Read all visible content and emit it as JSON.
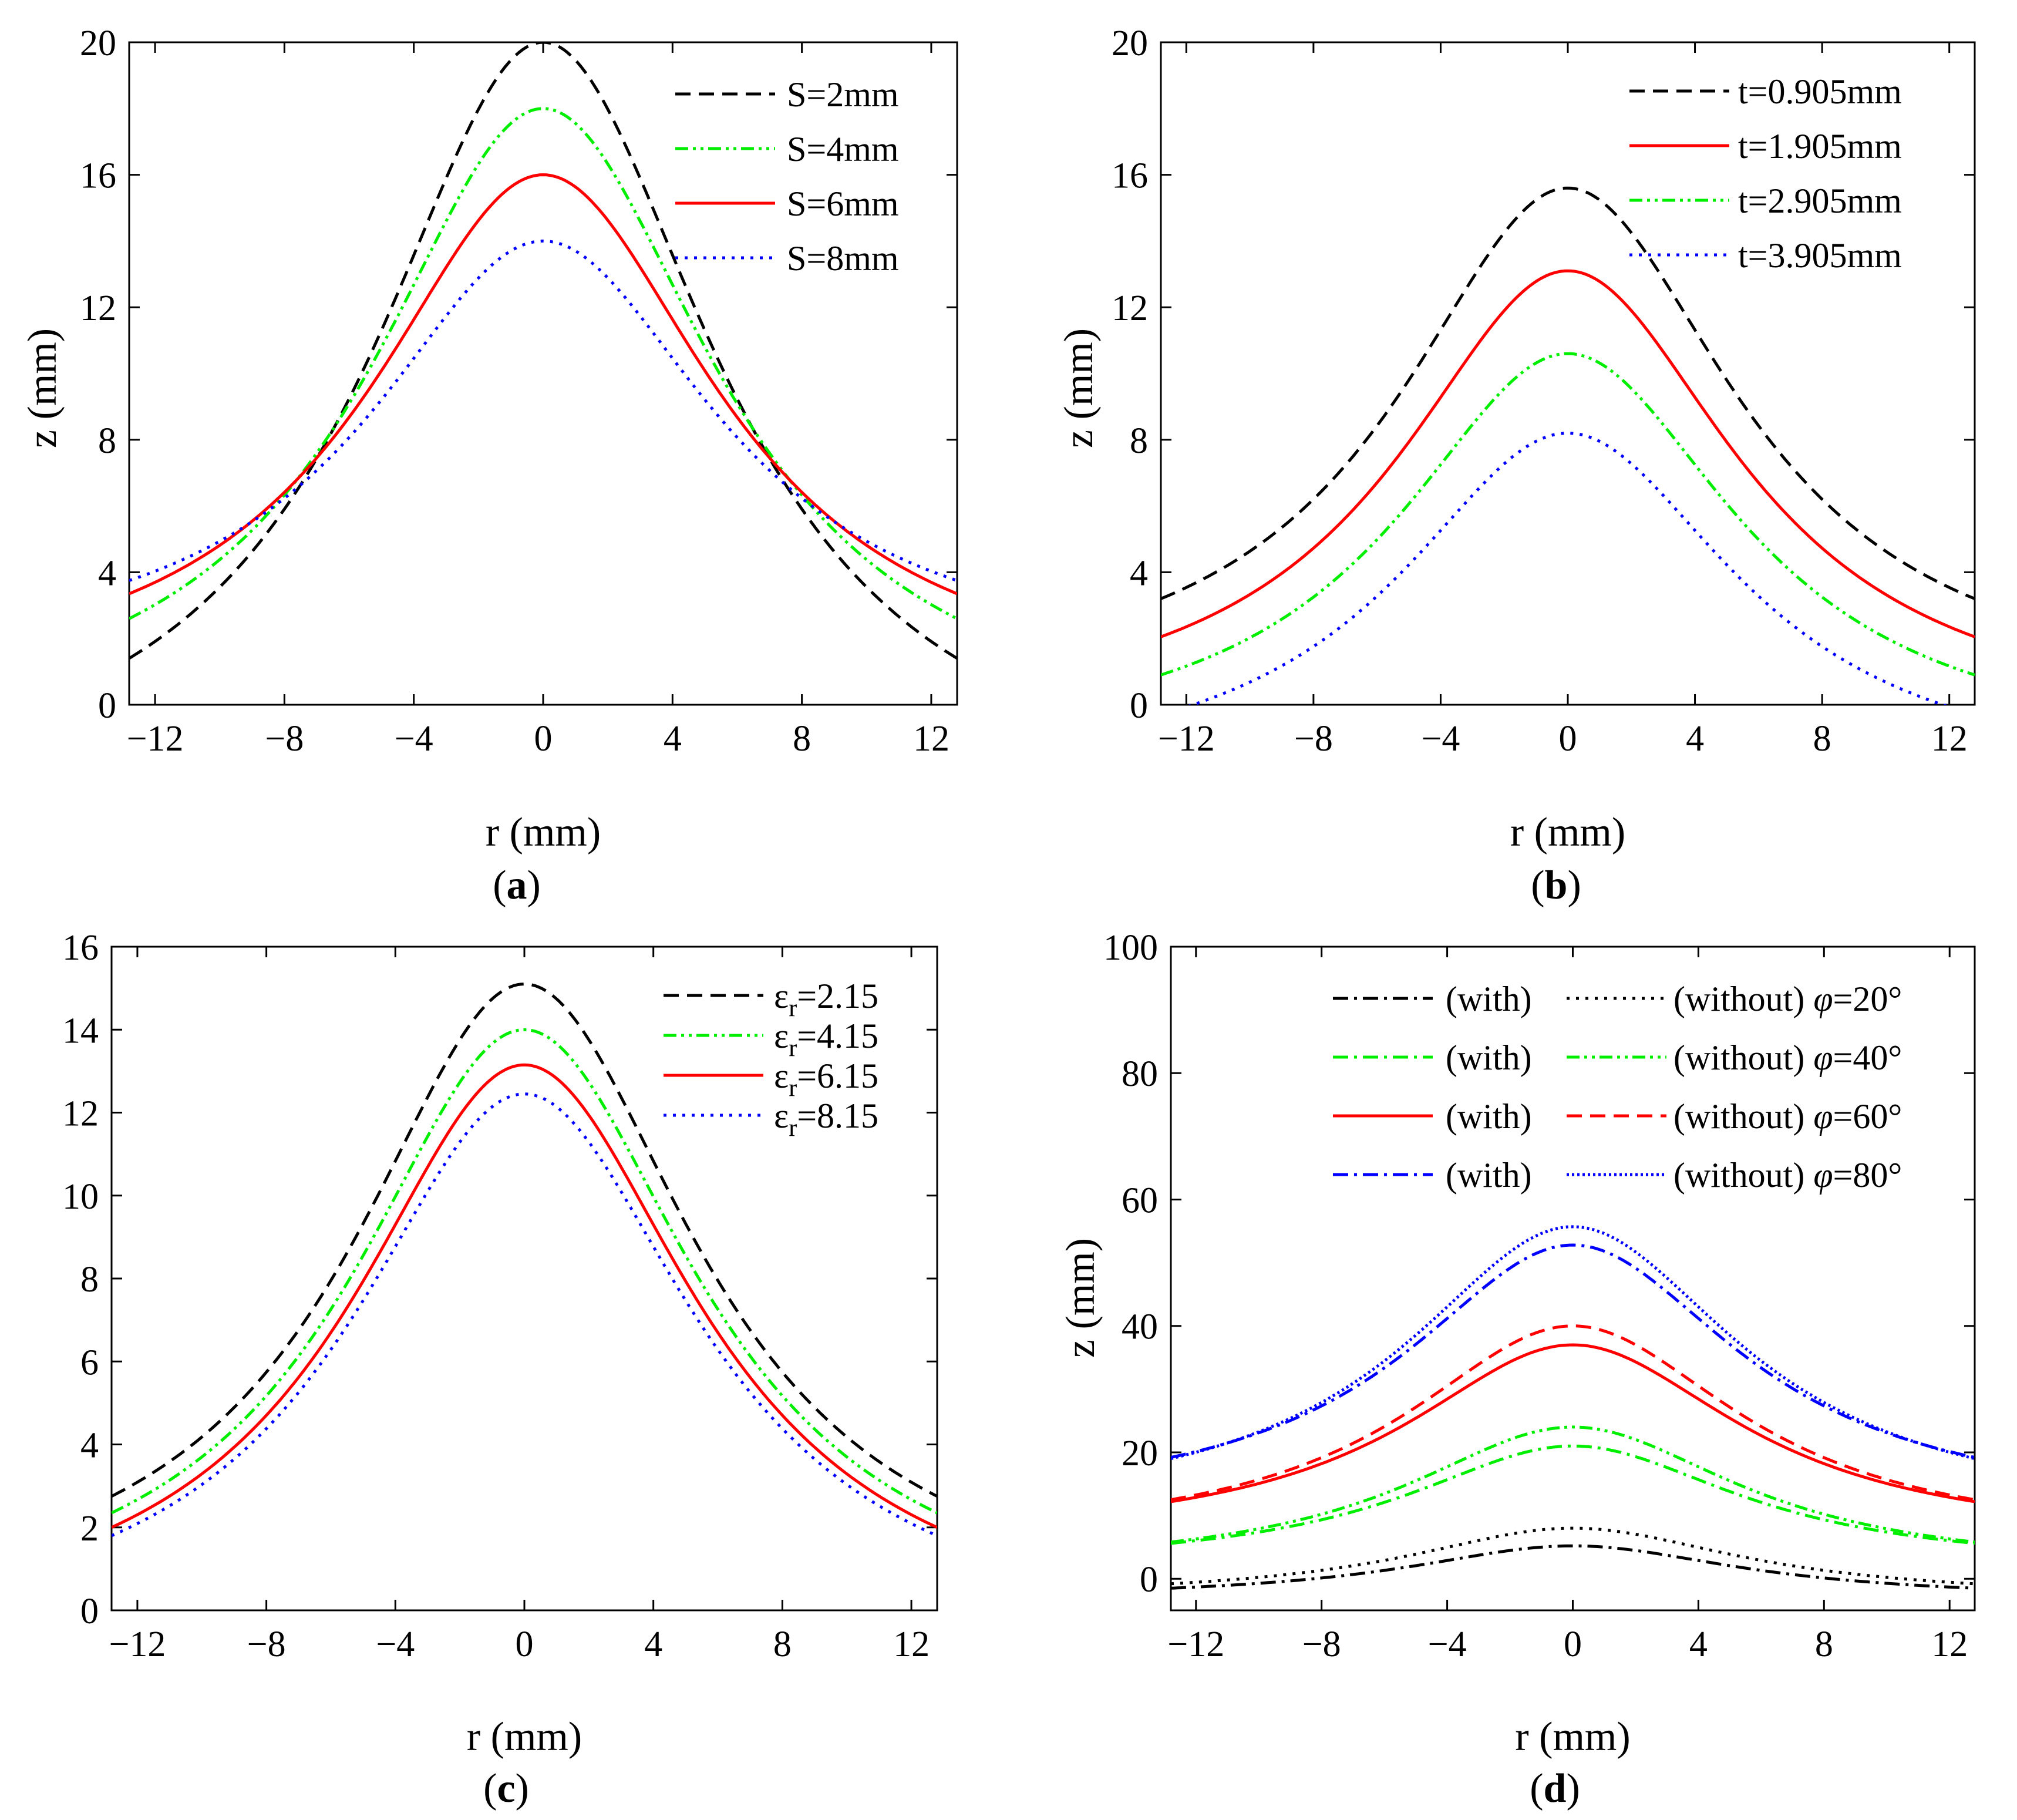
{
  "chart_data": [
    {
      "type": "line",
      "panel_label": "a",
      "xlabel": "r (mm)",
      "ylabel": "z (mm)",
      "xlim": [
        -12.8,
        12.8
      ],
      "ylim": [
        0,
        20
      ],
      "xticks": [
        -12,
        -8,
        -4,
        0,
        4,
        8,
        12
      ],
      "xtick_labels": [
        "−12",
        "−8",
        "−4",
        "0",
        "4",
        "8",
        "12"
      ],
      "yticks": [
        0,
        4,
        8,
        12,
        16,
        20
      ],
      "ytick_labels": [
        "0",
        "4",
        "8",
        "12",
        "16",
        "20"
      ],
      "legend_position": "top-right",
      "series": [
        {
          "name": "S=2mm",
          "color": "#000000",
          "dash": "dash",
          "peak": 20.0,
          "edge": 1.4
        },
        {
          "name": "S=4mm",
          "color": "#00ee00",
          "dash": "dashdotdot",
          "peak": 18.0,
          "edge": 2.6
        },
        {
          "name": "S=6mm",
          "color": "#ff0000",
          "dash": "solid",
          "peak": 16.0,
          "edge": 3.35
        },
        {
          "name": "S=8mm",
          "color": "#0000ff",
          "dash": "dot",
          "peak": 14.0,
          "edge": 3.75
        }
      ]
    },
    {
      "type": "line",
      "panel_label": "b",
      "xlabel": "r (mm)",
      "ylabel": "z (mm)",
      "xlim": [
        -12.8,
        12.8
      ],
      "ylim": [
        0,
        20
      ],
      "xticks": [
        -12,
        -8,
        -4,
        0,
        4,
        8,
        12
      ],
      "xtick_labels": [
        "−12",
        "−8",
        "−4",
        "0",
        "4",
        "8",
        "12"
      ],
      "yticks": [
        0,
        4,
        8,
        12,
        16,
        20
      ],
      "ytick_labels": [
        "0",
        "4",
        "8",
        "12",
        "16",
        "20"
      ],
      "legend_position": "top-right",
      "series": [
        {
          "name": "t=0.905mm",
          "color": "#000000",
          "dash": "dash",
          "peak": 15.6,
          "edge": 3.2
        },
        {
          "name": "t=1.905mm",
          "color": "#ff0000",
          "dash": "solid",
          "peak": 13.1,
          "edge": 2.05
        },
        {
          "name": "t=2.905mm",
          "color": "#00ee00",
          "dash": "dashdotdot",
          "peak": 10.6,
          "edge": 0.9
        },
        {
          "name": "t=3.905mm",
          "color": "#0000ff",
          "dash": "dot",
          "peak": 8.2,
          "edge": -0.3
        }
      ]
    },
    {
      "type": "line",
      "panel_label": "c",
      "xlabel": "r (mm)",
      "ylabel": "",
      "xlim": [
        -12.8,
        12.8
      ],
      "ylim": [
        0,
        16
      ],
      "xticks": [
        -12,
        -8,
        -4,
        0,
        4,
        8,
        12
      ],
      "xtick_labels": [
        "−12",
        "−8",
        "−4",
        "0",
        "4",
        "8",
        "12"
      ],
      "yticks": [
        0,
        2,
        4,
        6,
        8,
        10,
        12,
        14,
        16
      ],
      "ytick_labels": [
        "0",
        "2",
        "4",
        "6",
        "8",
        "10",
        "12",
        "14",
        "16"
      ],
      "legend_position": "top-right",
      "series": [
        {
          "name": "ε",
          "sub": "r",
          "value_text": "=2.15",
          "color": "#000000",
          "dash": "dash",
          "peak": 15.1,
          "edge": 2.75
        },
        {
          "name": "ε",
          "sub": "r",
          "value_text": "=4.15",
          "color": "#00ee00",
          "dash": "dashdotdot",
          "peak": 14.0,
          "edge": 2.35
        },
        {
          "name": "ε",
          "sub": "r",
          "value_text": "=6.15",
          "color": "#ff0000",
          "dash": "solid",
          "peak": 13.15,
          "edge": 2.0
        },
        {
          "name": "ε",
          "sub": "r",
          "value_text": "=8.15",
          "color": "#0000ff",
          "dash": "dot",
          "peak": 12.45,
          "edge": 1.8
        }
      ]
    },
    {
      "type": "line",
      "panel_label": "d",
      "xlabel": "r (mm)",
      "ylabel": "z (mm)",
      "xlim": [
        -12.8,
        12.8
      ],
      "ylim": [
        -5,
        100
      ],
      "xticks": [
        -12,
        -8,
        -4,
        0,
        4,
        8,
        12
      ],
      "xtick_labels": [
        "−12",
        "−8",
        "−4",
        "0",
        "4",
        "8",
        "12"
      ],
      "yticks": [
        0,
        20,
        40,
        60,
        80,
        100
      ],
      "ytick_labels": [
        "0",
        "20",
        "40",
        "60",
        "80",
        "100"
      ],
      "legend_position": "top-right",
      "legend_rows": [
        {
          "with_label": "(with)",
          "without_label": "(without)",
          "phi": "φ",
          "angle": "=20°",
          "color": "#000000",
          "with_dash": "dashdot",
          "without_dash": "dot"
        },
        {
          "with_label": "(with)",
          "without_label": "(without)",
          "phi": "φ",
          "angle": "=40°",
          "color": "#00ee00",
          "with_dash": "dashdot",
          "without_dash": "dashdotdot"
        },
        {
          "with_label": "(with)",
          "without_label": "(without)",
          "phi": "φ",
          "angle": "=60°",
          "color": "#ff0000",
          "with_dash": "solid",
          "without_dash": "dash"
        },
        {
          "with_label": "(with)",
          "without_label": "(without)",
          "phi": "φ",
          "angle": "=80°",
          "color": "#0000ff",
          "with_dash": "dashdot",
          "without_dash": "finedot"
        }
      ],
      "series": [
        {
          "name": "(with) φ=20°",
          "color": "#000000",
          "dash": "dashdot",
          "peak": 5.2,
          "edge": -1.5
        },
        {
          "name": "(without) φ=20°",
          "color": "#000000",
          "dash": "dot",
          "peak": 8.0,
          "edge": -0.8
        },
        {
          "name": "(with) φ=40°",
          "color": "#00ee00",
          "dash": "dashdot",
          "peak": 21.0,
          "edge": 5.6
        },
        {
          "name": "(without) φ=40°",
          "color": "#00ee00",
          "dash": "dashdotdot",
          "peak": 24.0,
          "edge": 5.8
        },
        {
          "name": "(with) φ=60°",
          "color": "#ff0000",
          "dash": "solid",
          "peak": 37.0,
          "edge": 12.2
        },
        {
          "name": "(without) φ=60°",
          "color": "#ff0000",
          "dash": "dash",
          "peak": 40.0,
          "edge": 12.5
        },
        {
          "name": "(with) φ=80°",
          "color": "#0000ff",
          "dash": "dashdot",
          "peak": 52.8,
          "edge": 19.2
        },
        {
          "name": "(without) φ=80°",
          "color": "#0000ff",
          "dash": "finedot",
          "peak": 55.7,
          "edge": 19.0
        }
      ]
    }
  ]
}
